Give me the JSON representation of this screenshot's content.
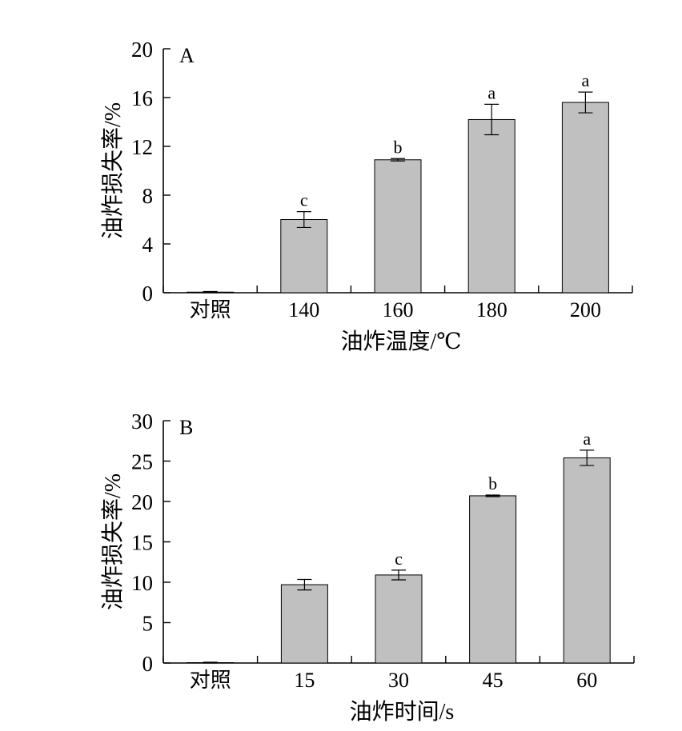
{
  "chart_data": [
    {
      "type": "bar",
      "panel_label": "A",
      "categories": [
        "对照",
        "140",
        "160",
        "180",
        "200"
      ],
      "values": [
        0.05,
        6.0,
        10.9,
        14.2,
        15.6
      ],
      "errors": [
        0.05,
        0.65,
        0.1,
        1.25,
        0.85
      ],
      "significance": [
        "",
        "c",
        "b",
        "a",
        "a"
      ],
      "xlabel": "油炸温度/℃",
      "ylabel": "油炸损失率/%",
      "ylim": [
        0,
        20
      ],
      "yticks": [
        "0",
        "4",
        "8",
        "12",
        "16",
        "20"
      ],
      "bar_color": "#c0c0c0",
      "grid": false
    },
    {
      "type": "bar",
      "panel_label": "B",
      "categories": [
        "对照",
        "15",
        "30",
        "45",
        "60"
      ],
      "values": [
        0.05,
        9.7,
        10.9,
        20.7,
        25.4
      ],
      "errors": [
        0.05,
        0.65,
        0.6,
        0.1,
        0.95
      ],
      "significance": [
        "",
        "",
        "c",
        "b",
        "a"
      ],
      "xlabel": "油炸时间/s",
      "ylabel": "油炸损失率/%",
      "ylim": [
        0,
        30
      ],
      "yticks": [
        "0",
        "5",
        "10",
        "15",
        "20",
        "25",
        "30"
      ],
      "bar_color": "#c0c0c0",
      "grid": false
    }
  ]
}
